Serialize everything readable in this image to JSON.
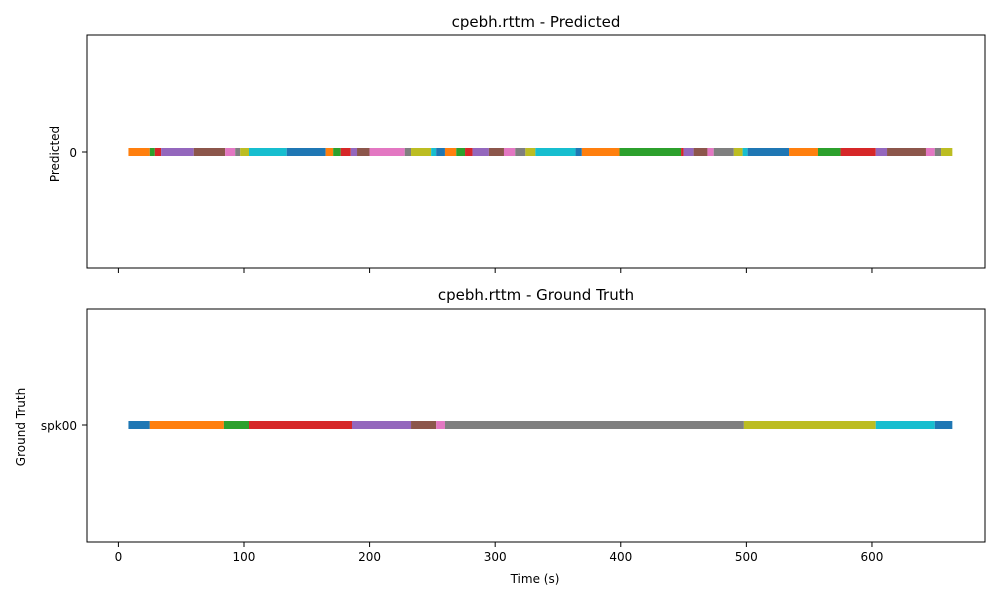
{
  "chart_data": [
    {
      "type": "timeline",
      "title": "cpebh.rttm - Predicted",
      "ylabel": "Predicted",
      "xlabel": "",
      "xlim": [
        -25,
        690
      ],
      "xticks": [
        0,
        100,
        200,
        300,
        400,
        500,
        600
      ],
      "show_xtick_labels": false,
      "grid": false,
      "rows": [
        "0"
      ],
      "segments": [
        {
          "start": 8,
          "end": 25,
          "color": "#ff7f0e"
        },
        {
          "start": 25,
          "end": 29,
          "color": "#2ca02c"
        },
        {
          "start": 29,
          "end": 34,
          "color": "#d62728"
        },
        {
          "start": 34,
          "end": 60,
          "color": "#9467bd"
        },
        {
          "start": 60,
          "end": 85,
          "color": "#8c564b"
        },
        {
          "start": 85,
          "end": 93,
          "color": "#e377c2"
        },
        {
          "start": 93,
          "end": 97,
          "color": "#7f7f7f"
        },
        {
          "start": 97,
          "end": 104,
          "color": "#bcbd22"
        },
        {
          "start": 104,
          "end": 134,
          "color": "#17becf"
        },
        {
          "start": 134,
          "end": 165,
          "color": "#1f77b4"
        },
        {
          "start": 165,
          "end": 171,
          "color": "#ff7f0e"
        },
        {
          "start": 171,
          "end": 177,
          "color": "#2ca02c"
        },
        {
          "start": 177,
          "end": 185,
          "color": "#d62728"
        },
        {
          "start": 185,
          "end": 190,
          "color": "#9467bd"
        },
        {
          "start": 190,
          "end": 200,
          "color": "#8c564b"
        },
        {
          "start": 200,
          "end": 228,
          "color": "#e377c2"
        },
        {
          "start": 228,
          "end": 233,
          "color": "#7f7f7f"
        },
        {
          "start": 233,
          "end": 249,
          "color": "#bcbd22"
        },
        {
          "start": 249,
          "end": 253,
          "color": "#17becf"
        },
        {
          "start": 253,
          "end": 260,
          "color": "#1f77b4"
        },
        {
          "start": 260,
          "end": 269,
          "color": "#ff7f0e"
        },
        {
          "start": 269,
          "end": 276,
          "color": "#2ca02c"
        },
        {
          "start": 276,
          "end": 282,
          "color": "#d62728"
        },
        {
          "start": 282,
          "end": 295,
          "color": "#9467bd"
        },
        {
          "start": 295,
          "end": 307,
          "color": "#8c564b"
        },
        {
          "start": 307,
          "end": 316,
          "color": "#e377c2"
        },
        {
          "start": 316,
          "end": 324,
          "color": "#7f7f7f"
        },
        {
          "start": 324,
          "end": 332,
          "color": "#bcbd22"
        },
        {
          "start": 332,
          "end": 364,
          "color": "#17becf"
        },
        {
          "start": 364,
          "end": 369,
          "color": "#1f77b4"
        },
        {
          "start": 369,
          "end": 399,
          "color": "#ff7f0e"
        },
        {
          "start": 399,
          "end": 448,
          "color": "#2ca02c"
        },
        {
          "start": 448,
          "end": 450,
          "color": "#d62728"
        },
        {
          "start": 450,
          "end": 458,
          "color": "#9467bd"
        },
        {
          "start": 458,
          "end": 469,
          "color": "#8c564b"
        },
        {
          "start": 469,
          "end": 474,
          "color": "#e377c2"
        },
        {
          "start": 474,
          "end": 490,
          "color": "#7f7f7f"
        },
        {
          "start": 490,
          "end": 497,
          "color": "#bcbd22"
        },
        {
          "start": 497,
          "end": 501,
          "color": "#17becf"
        },
        {
          "start": 501,
          "end": 534,
          "color": "#1f77b4"
        },
        {
          "start": 534,
          "end": 557,
          "color": "#ff7f0e"
        },
        {
          "start": 557,
          "end": 575,
          "color": "#2ca02c"
        },
        {
          "start": 575,
          "end": 603,
          "color": "#d62728"
        },
        {
          "start": 603,
          "end": 612,
          "color": "#9467bd"
        },
        {
          "start": 612,
          "end": 643,
          "color": "#8c564b"
        },
        {
          "start": 643,
          "end": 650,
          "color": "#e377c2"
        },
        {
          "start": 650,
          "end": 655,
          "color": "#7f7f7f"
        },
        {
          "start": 655,
          "end": 664,
          "color": "#bcbd22"
        }
      ]
    },
    {
      "type": "timeline",
      "title": "cpebh.rttm - Ground Truth",
      "ylabel": "Ground Truth",
      "xlabel": "Time (s)",
      "xlim": [
        -25,
        690
      ],
      "xticks": [
        0,
        100,
        200,
        300,
        400,
        500,
        600
      ],
      "show_xtick_labels": true,
      "grid": false,
      "rows": [
        "spk00"
      ],
      "segments": [
        {
          "start": 8,
          "end": 25,
          "color": "#1f77b4"
        },
        {
          "start": 25,
          "end": 84,
          "color": "#ff7f0e"
        },
        {
          "start": 84,
          "end": 104,
          "color": "#2ca02c"
        },
        {
          "start": 104,
          "end": 186,
          "color": "#d62728"
        },
        {
          "start": 186,
          "end": 233,
          "color": "#9467bd"
        },
        {
          "start": 233,
          "end": 253,
          "color": "#8c564b"
        },
        {
          "start": 253,
          "end": 260,
          "color": "#e377c2"
        },
        {
          "start": 260,
          "end": 498,
          "color": "#7f7f7f"
        },
        {
          "start": 498,
          "end": 603,
          "color": "#bcbd22"
        },
        {
          "start": 603,
          "end": 650,
          "color": "#17becf"
        },
        {
          "start": 650,
          "end": 664,
          "color": "#1f77b4"
        }
      ]
    }
  ]
}
